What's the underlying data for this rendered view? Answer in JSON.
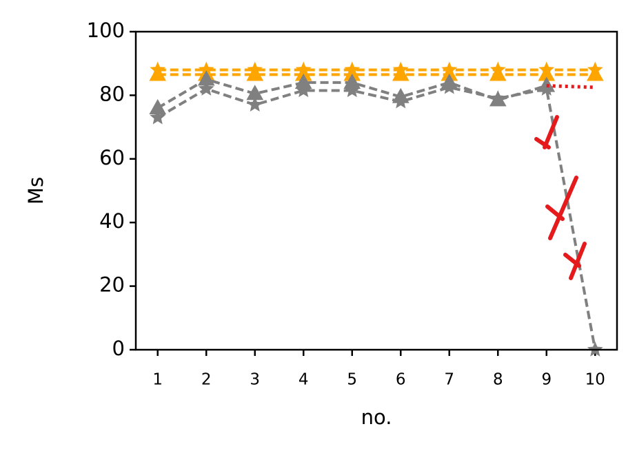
{
  "chart_data": {
    "type": "line",
    "xlabel": "no.",
    "ylabel": "Ms",
    "x": [
      1,
      2,
      3,
      4,
      5,
      6,
      7,
      8,
      9,
      10
    ],
    "xlim": [
      0.55,
      10.45
    ],
    "xticks": [
      1,
      2,
      3,
      4,
      5,
      6,
      7,
      8,
      9,
      10
    ],
    "ylim": [
      0,
      100
    ],
    "yticks": [
      0,
      20,
      40,
      60,
      80,
      100
    ],
    "series": [
      {
        "color": "#ffa500",
        "marker": "star",
        "dash": "dashed",
        "values": [
          88,
          88,
          88,
          88,
          88,
          88,
          88,
          88,
          88,
          88
        ]
      },
      {
        "color": "#ffa500",
        "marker": "triangle",
        "dash": "dashed",
        "values": [
          86.5,
          86.5,
          86.5,
          86.5,
          86.5,
          86.5,
          86.5,
          86.5,
          86.5,
          86.5
        ]
      },
      {
        "color": "#808080",
        "marker": "triangle",
        "dash": "dashed",
        "values": [
          76,
          85,
          80.5,
          84,
          84,
          79.5,
          84,
          78.5,
          83,
          null
        ]
      },
      {
        "color": "#808080",
        "marker": "star",
        "dash": "dashed",
        "values": [
          73,
          82,
          77,
          81.5,
          81.5,
          78,
          82.5,
          79,
          82,
          0
        ]
      },
      {
        "color": "#e41a1c",
        "marker": "none",
        "dash": "dotted",
        "values": [
          null,
          null,
          null,
          null,
          null,
          null,
          null,
          null,
          83,
          82.5
        ]
      }
    ]
  }
}
